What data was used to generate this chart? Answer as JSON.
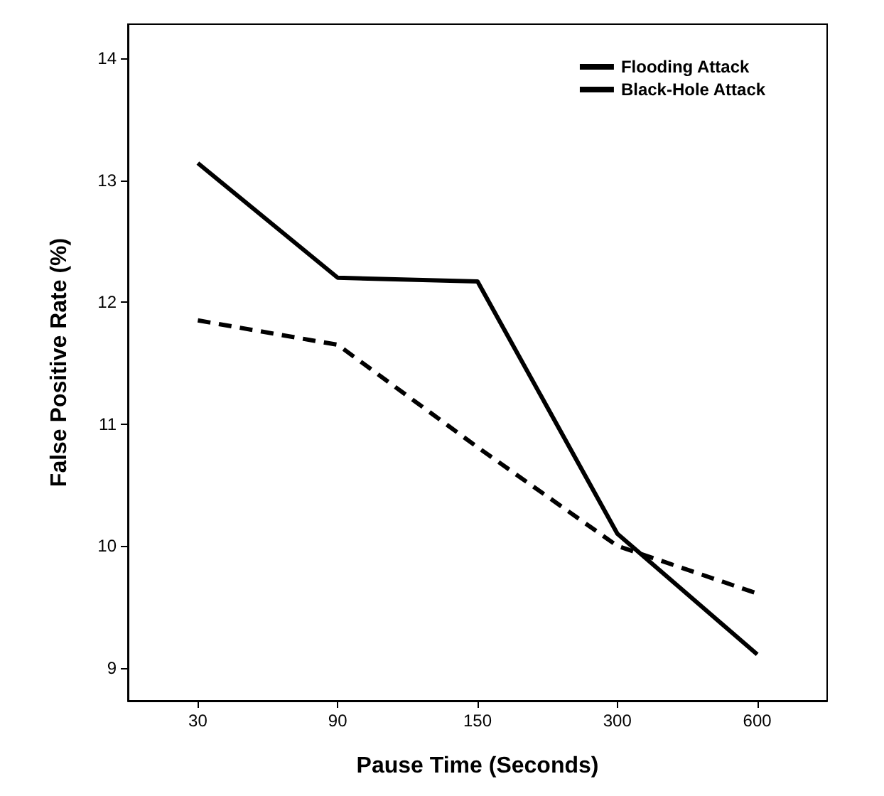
{
  "chart_data": {
    "type": "line",
    "xlabel": "Pause Time (Seconds)",
    "ylabel": "False Positive Rate (%)",
    "categories": [
      "30",
      "90",
      "150",
      "300",
      "600"
    ],
    "series": [
      {
        "name": "Flooding Attack",
        "color": "#000000",
        "line_style": "solid",
        "values": [
          13.14,
          12.2,
          12.17,
          10.1,
          9.11
        ]
      },
      {
        "name": "Black-Hole Attack",
        "color": "#000000",
        "line_style": "dashed",
        "values": [
          11.85,
          11.65,
          10.81,
          10.0,
          9.61
        ]
      }
    ],
    "ylim": [
      8.73,
      14.28
    ],
    "yticks": [
      9,
      10,
      11,
      12,
      13,
      14
    ],
    "grid": false,
    "legend": "top right",
    "marker": "none"
  }
}
